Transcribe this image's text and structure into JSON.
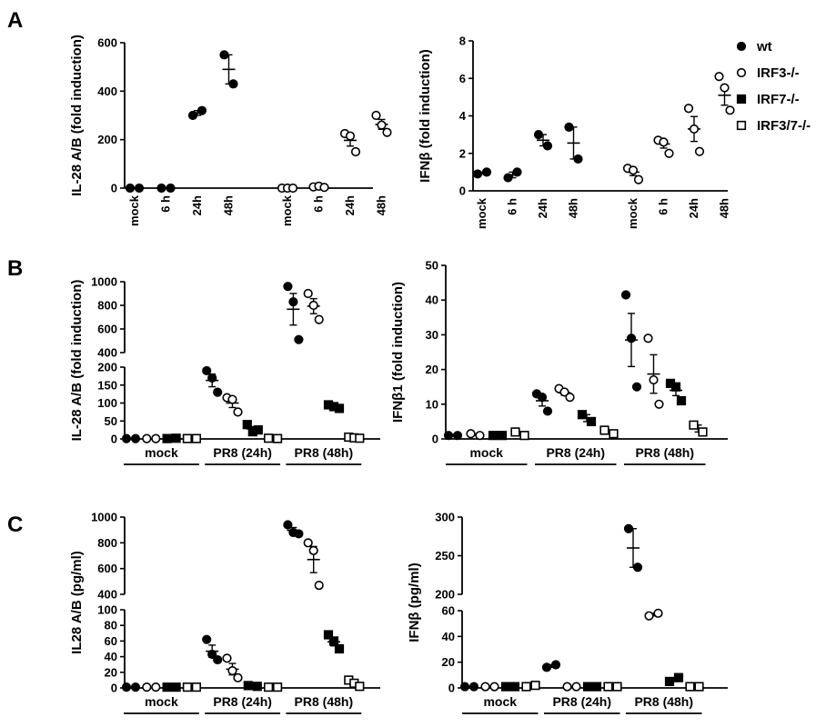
{
  "panels": [
    {
      "id": "panel-A",
      "label": "A"
    },
    {
      "id": "panel-B",
      "label": "B"
    },
    {
      "id": "panel-C",
      "label": "C"
    }
  ],
  "legend": [
    {
      "label": "wt",
      "marker": "circle",
      "filled": true
    },
    {
      "label": "IRF3-/-",
      "marker": "circle",
      "filled": false
    },
    {
      "label": "IRF7-/-",
      "marker": "square",
      "filled": true
    },
    {
      "label": "IRF3/7-/-",
      "marker": "square",
      "filled": false
    }
  ],
  "chart_data": [
    {
      "type": "scatter",
      "panel": "A",
      "ylabel": "IL-28 A/B (fold induction)",
      "ylim": [
        0,
        600
      ],
      "yticks": [
        0,
        200,
        400,
        600
      ],
      "categories": [
        "mock",
        "6 h",
        "24h",
        "48h",
        "mock",
        "6 h",
        "24h",
        "48h"
      ],
      "groups": [],
      "series": [
        {
          "name": "wt",
          "points": [
            {
              "cat": 0,
              "values": [
                0,
                0
              ],
              "mean": 0
            },
            {
              "cat": 1,
              "values": [
                0,
                0
              ],
              "mean": 0
            },
            {
              "cat": 2,
              "values": [
                300,
                320
              ],
              "mean": 310
            },
            {
              "cat": 3,
              "values": [
                550,
                430
              ],
              "mean": 490
            }
          ]
        },
        {
          "name": "IRF3-/-",
          "points": [
            {
              "cat": 4,
              "values": [
                0,
                0,
                0
              ],
              "mean": 0
            },
            {
              "cat": 5,
              "values": [
                5,
                8,
                3
              ],
              "mean": 5
            },
            {
              "cat": 6,
              "values": [
                225,
                215,
                150
              ],
              "mean": 197
            },
            {
              "cat": 7,
              "values": [
                300,
                260,
                230
              ],
              "mean": 263
            }
          ]
        }
      ]
    },
    {
      "type": "scatter",
      "panel": "A",
      "ylabel": "IFNβ (fold induction)",
      "ylim": [
        0,
        8
      ],
      "yticks": [
        0,
        2,
        4,
        6,
        8
      ],
      "categories": [
        "mock",
        "6 h",
        "24h",
        "48h",
        "mock",
        "6 h",
        "24h",
        "48h"
      ],
      "groups": [],
      "series": [
        {
          "name": "wt",
          "points": [
            {
              "cat": 0,
              "values": [
                0.9,
                1.0
              ],
              "mean": 0.95
            },
            {
              "cat": 1,
              "values": [
                0.7,
                1.0
              ],
              "mean": 0.85
            },
            {
              "cat": 2,
              "values": [
                3.0,
                2.4
              ],
              "mean": 2.7
            },
            {
              "cat": 3,
              "values": [
                3.4,
                1.7
              ],
              "mean": 2.55
            }
          ]
        },
        {
          "name": "IRF3-/-",
          "points": [
            {
              "cat": 4,
              "values": [
                1.2,
                1.1,
                0.6
              ],
              "mean": 1.0
            },
            {
              "cat": 5,
              "values": [
                2.7,
                2.6,
                2.0
              ],
              "mean": 2.5
            },
            {
              "cat": 6,
              "values": [
                4.4,
                3.3,
                2.1
              ],
              "mean": 3.3
            },
            {
              "cat": 7,
              "values": [
                6.1,
                5.5,
                4.3
              ],
              "mean": 5.1
            }
          ]
        }
      ]
    },
    {
      "type": "scatter",
      "panel": "B",
      "ylabel": "IL-28 A/B (fold induction)",
      "axis_break": {
        "lower": [
          0,
          200
        ],
        "upper": [
          400,
          1000
        ]
      },
      "yticks": [
        0,
        50,
        100,
        150,
        200,
        400,
        600,
        800,
        1000
      ],
      "categories": [
        "mock",
        "mock",
        "mock",
        "mock",
        "PR8 (24h)",
        "PR8 (24h)",
        "PR8 (24h)",
        "PR8 (24h)",
        "PR8 (48h)",
        "PR8 (48h)",
        "PR8 (48h)",
        "PR8 (48h)"
      ],
      "groups": [
        {
          "label": "mock",
          "start": 0,
          "end": 3
        },
        {
          "label": "PR8 (24h)",
          "start": 4,
          "end": 7
        },
        {
          "label": "PR8 (48h)",
          "start": 8,
          "end": 11
        }
      ],
      "series": [
        {
          "name": "wt",
          "points": [
            {
              "cat": 0,
              "values": [
                1,
                1
              ],
              "mean": 1
            },
            {
              "cat": 4,
              "values": [
                190,
                170,
                130
              ],
              "mean": 163
            },
            {
              "cat": 8,
              "values": [
                960,
                830,
                510
              ],
              "mean": 767
            }
          ]
        },
        {
          "name": "IRF3-/-",
          "points": [
            {
              "cat": 1,
              "values": [
                1,
                1
              ],
              "mean": 1
            },
            {
              "cat": 5,
              "values": [
                115,
                110,
                75
              ],
              "mean": 100
            },
            {
              "cat": 9,
              "values": [
                900,
                800,
                680
              ],
              "mean": 793
            }
          ]
        },
        {
          "name": "IRF7-/-",
          "points": [
            {
              "cat": 2,
              "values": [
                1,
                2
              ],
              "mean": 1.5
            },
            {
              "cat": 6,
              "values": [
                40,
                20,
                25
              ],
              "mean": 28
            },
            {
              "cat": 10,
              "values": [
                95,
                90,
                85
              ],
              "mean": 90
            }
          ]
        },
        {
          "name": "IRF3/7-/-",
          "points": [
            {
              "cat": 3,
              "values": [
                1,
                1
              ],
              "mean": 1
            },
            {
              "cat": 7,
              "values": [
                2,
                1
              ],
              "mean": 1.5
            },
            {
              "cat": 11,
              "values": [
                5,
                3,
                2
              ],
              "mean": 3
            }
          ]
        }
      ]
    },
    {
      "type": "scatter",
      "panel": "B",
      "ylabel": "IFNβ1 (fold induction)",
      "ylim": [
        0,
        50
      ],
      "yticks": [
        0,
        10,
        20,
        30,
        40,
        50
      ],
      "categories": [
        "mock",
        "mock",
        "mock",
        "mock",
        "PR8 (24h)",
        "PR8 (24h)",
        "PR8 (24h)",
        "PR8 (24h)",
        "PR8 (48h)",
        "PR8 (48h)",
        "PR8 (48h)",
        "PR8 (48h)"
      ],
      "groups": [
        {
          "label": "mock",
          "start": 0,
          "end": 3
        },
        {
          "label": "PR8 (24h)",
          "start": 4,
          "end": 7
        },
        {
          "label": "PR8 (48h)",
          "start": 8,
          "end": 11
        }
      ],
      "series": [
        {
          "name": "wt",
          "points": [
            {
              "cat": 0,
              "values": [
                1,
                1
              ],
              "mean": 1
            },
            {
              "cat": 4,
              "values": [
                13,
                12,
                8
              ],
              "mean": 11
            },
            {
              "cat": 8,
              "values": [
                41.5,
                29,
                15
              ],
              "mean": 28.5
            }
          ]
        },
        {
          "name": "IRF3-/-",
          "points": [
            {
              "cat": 1,
              "values": [
                1.5,
                1
              ],
              "mean": 1.2
            },
            {
              "cat": 5,
              "values": [
                14.5,
                13.5,
                12
              ],
              "mean": 13.3
            },
            {
              "cat": 9,
              "values": [
                29,
                17,
                10
              ],
              "mean": 18.7
            }
          ]
        },
        {
          "name": "IRF7-/-",
          "points": [
            {
              "cat": 2,
              "values": [
                1,
                1
              ],
              "mean": 1
            },
            {
              "cat": 6,
              "values": [
                7,
                5
              ],
              "mean": 6
            },
            {
              "cat": 10,
              "values": [
                16,
                15,
                11
              ],
              "mean": 14
            }
          ]
        },
        {
          "name": "IRF3/7-/-",
          "points": [
            {
              "cat": 3,
              "values": [
                2,
                1
              ],
              "mean": 1.5
            },
            {
              "cat": 7,
              "values": [
                2.5,
                1.5
              ],
              "mean": 2
            },
            {
              "cat": 11,
              "values": [
                4,
                2
              ],
              "mean": 3
            }
          ]
        }
      ]
    },
    {
      "type": "scatter",
      "panel": "C",
      "ylabel": "IL28 A/B (pg/ml)",
      "axis_break": {
        "lower": [
          0,
          100
        ],
        "upper": [
          400,
          1000
        ]
      },
      "yticks": [
        0,
        20,
        40,
        60,
        80,
        100,
        400,
        600,
        800,
        1000
      ],
      "categories": [
        "mock",
        "mock",
        "mock",
        "mock",
        "PR8 (24h)",
        "PR8 (24h)",
        "PR8 (24h)",
        "PR8 (24h)",
        "PR8 (48h)",
        "PR8 (48h)",
        "PR8 (48h)",
        "PR8 (48h)"
      ],
      "groups": [
        {
          "label": "mock",
          "start": 0,
          "end": 3
        },
        {
          "label": "PR8 (24h)",
          "start": 4,
          "end": 7
        },
        {
          "label": "PR8 (48h)",
          "start": 8,
          "end": 11
        }
      ],
      "series": [
        {
          "name": "wt",
          "points": [
            {
              "cat": 0,
              "values": [
                1,
                1
              ],
              "mean": 1
            },
            {
              "cat": 4,
              "values": [
                62,
                43,
                36
              ],
              "mean": 47
            },
            {
              "cat": 8,
              "values": [
                940,
                880,
                870
              ],
              "mean": 897
            }
          ]
        },
        {
          "name": "IRF3-/-",
          "points": [
            {
              "cat": 1,
              "values": [
                1,
                1
              ],
              "mean": 1
            },
            {
              "cat": 5,
              "values": [
                38,
                22,
                13
              ],
              "mean": 24
            },
            {
              "cat": 9,
              "values": [
                800,
                740,
                470
              ],
              "mean": 670
            }
          ]
        },
        {
          "name": "IRF7-/-",
          "points": [
            {
              "cat": 2,
              "values": [
                1,
                1
              ],
              "mean": 1
            },
            {
              "cat": 6,
              "values": [
                3,
                2
              ],
              "mean": 2.5
            },
            {
              "cat": 10,
              "values": [
                68,
                60,
                50
              ],
              "mean": 59
            }
          ]
        },
        {
          "name": "IRF3/7-/-",
          "points": [
            {
              "cat": 3,
              "values": [
                1,
                1
              ],
              "mean": 1
            },
            {
              "cat": 7,
              "values": [
                1,
                1
              ],
              "mean": 1
            },
            {
              "cat": 11,
              "values": [
                10,
                6,
                2
              ],
              "mean": 6
            }
          ]
        }
      ]
    },
    {
      "type": "scatter",
      "panel": "C",
      "ylabel": "IFNβ (pg/ml)",
      "axis_break": {
        "lower": [
          0,
          60
        ],
        "upper": [
          200,
          300
        ]
      },
      "yticks": [
        0,
        20,
        40,
        60,
        200,
        250,
        300
      ],
      "categories": [
        "mock",
        "mock",
        "mock",
        "mock",
        "PR8 (24h)",
        "PR8 (24h)",
        "PR8 (24h)",
        "PR8 (24h)",
        "PR8 (48h)",
        "PR8 (48h)",
        "PR8 (48h)",
        "PR8 (48h)"
      ],
      "groups": [
        {
          "label": "mock",
          "start": 0,
          "end": 3
        },
        {
          "label": "PR8 (24h)",
          "start": 4,
          "end": 7
        },
        {
          "label": "PR8 (48h)",
          "start": 8,
          "end": 11
        }
      ],
      "series": [
        {
          "name": "wt",
          "points": [
            {
              "cat": 0,
              "values": [
                1,
                1
              ],
              "mean": 1
            },
            {
              "cat": 4,
              "values": [
                16,
                18
              ],
              "mean": 17
            },
            {
              "cat": 8,
              "values": [
                285,
                235
              ],
              "mean": 260
            }
          ]
        },
        {
          "name": "IRF3-/-",
          "points": [
            {
              "cat": 1,
              "values": [
                1,
                1
              ],
              "mean": 1
            },
            {
              "cat": 5,
              "values": [
                1,
                1
              ],
              "mean": 1
            },
            {
              "cat": 9,
              "values": [
                56,
                58
              ],
              "mean": 57
            }
          ]
        },
        {
          "name": "IRF7-/-",
          "points": [
            {
              "cat": 2,
              "values": [
                1,
                1
              ],
              "mean": 1
            },
            {
              "cat": 6,
              "values": [
                1,
                1
              ],
              "mean": 1
            },
            {
              "cat": 10,
              "values": [
                5,
                8
              ],
              "mean": 6.5
            }
          ]
        },
        {
          "name": "IRF3/7-/-",
          "points": [
            {
              "cat": 3,
              "values": [
                1,
                2
              ],
              "mean": 1.5
            },
            {
              "cat": 7,
              "values": [
                1,
                1
              ],
              "mean": 1
            },
            {
              "cat": 11,
              "values": [
                1,
                1
              ],
              "mean": 1
            }
          ]
        }
      ]
    }
  ]
}
